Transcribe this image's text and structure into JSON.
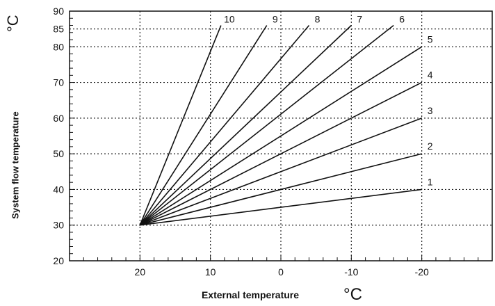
{
  "chart_data": {
    "type": "line",
    "title": "",
    "xlabel": "External temperature",
    "ylabel": "System flow temperature",
    "x_unit": "°C",
    "y_unit": "°C",
    "xlim": [
      30,
      -30
    ],
    "ylim": [
      20,
      90
    ],
    "x_ticks": [
      20,
      10,
      0,
      -10,
      -20
    ],
    "x_tick_labels": [
      "20",
      "10",
      "0",
      "-10",
      "-20"
    ],
    "y_ticks": [
      20,
      30,
      40,
      50,
      60,
      70,
      80,
      85,
      90
    ],
    "y_tick_labels": [
      "20",
      "30",
      "40",
      "50",
      "60",
      "70",
      "80",
      "85",
      "90"
    ],
    "grid": true,
    "series": [
      {
        "name": "1",
        "x": [
          20,
          -20
        ],
        "y": [
          30,
          40
        ]
      },
      {
        "name": "2",
        "x": [
          20,
          -20
        ],
        "y": [
          30,
          50
        ]
      },
      {
        "name": "3",
        "x": [
          20,
          -20
        ],
        "y": [
          30,
          60
        ]
      },
      {
        "name": "4",
        "x": [
          20,
          -20
        ],
        "y": [
          30,
          70
        ]
      },
      {
        "name": "5",
        "x": [
          20,
          -20
        ],
        "y": [
          30,
          80
        ]
      },
      {
        "name": "6",
        "x": [
          20,
          -16
        ],
        "y": [
          30,
          86
        ]
      },
      {
        "name": "7",
        "x": [
          20,
          -10
        ],
        "y": [
          30,
          86
        ]
      },
      {
        "name": "8",
        "x": [
          20,
          -4
        ],
        "y": [
          30,
          86
        ]
      },
      {
        "name": "9",
        "x": [
          20,
          2
        ],
        "y": [
          30,
          86
        ]
      },
      {
        "name": "10",
        "x": [
          20,
          8.5
        ],
        "y": [
          30,
          86
        ]
      }
    ]
  }
}
